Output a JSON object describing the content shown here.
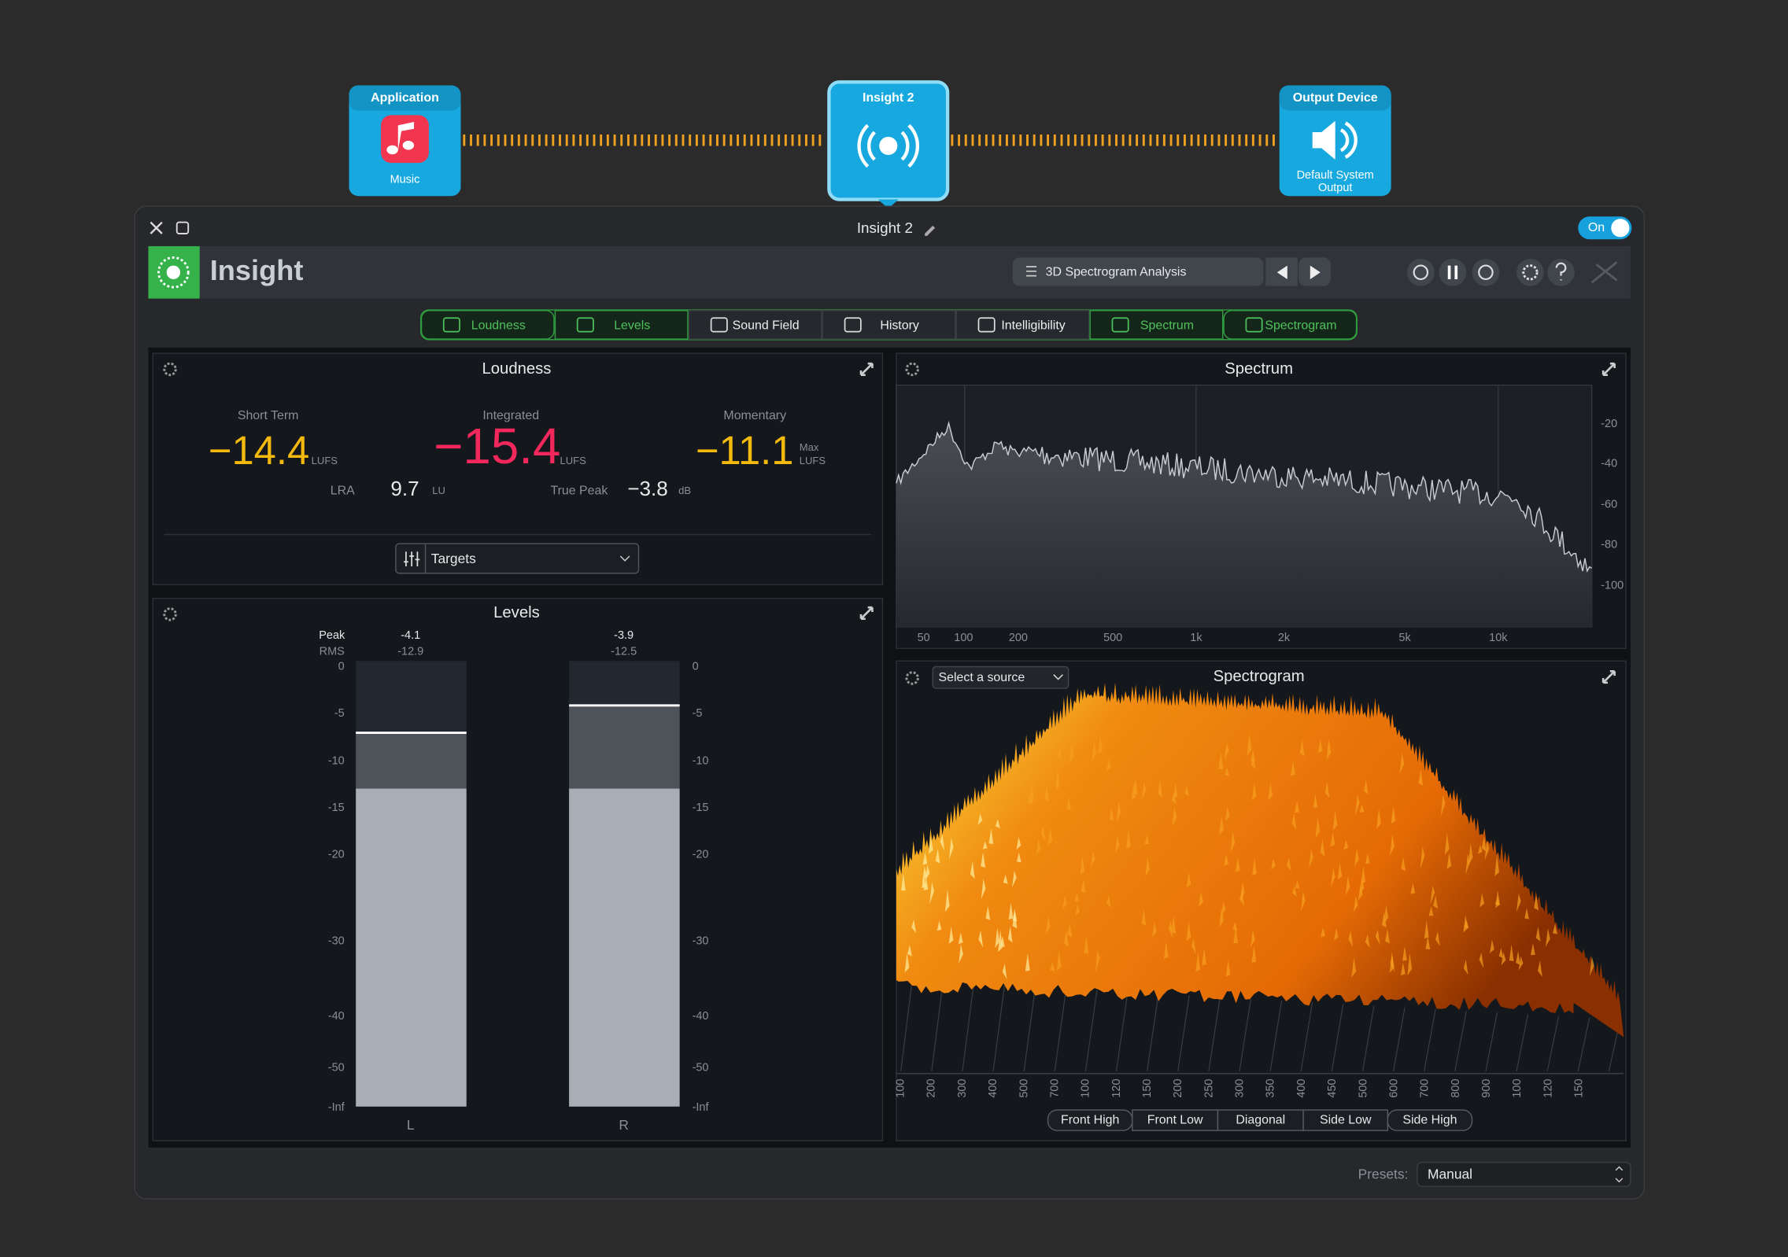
{
  "routing": {
    "nodes": [
      {
        "title": "Application",
        "label": "Music"
      },
      {
        "title": "Insight 2"
      },
      {
        "title": "Output Device",
        "label_line1": "Default System",
        "label_line2": "Output"
      }
    ]
  },
  "window": {
    "title": "Insight 2",
    "toggle": "On",
    "app_name": "Insight",
    "preset_name": "3D Spectrogram Analysis",
    "tabs": [
      "Loudness",
      "Levels",
      "Sound Field",
      "History",
      "Intelligibility",
      "Spectrum",
      "Spectrogram"
    ],
    "presets_label": "Presets:",
    "presets_value": "Manual"
  },
  "loudness": {
    "title": "Loudness",
    "short_term": {
      "label": "Short Term",
      "value": "−14.4",
      "unit": "LUFS"
    },
    "integrated": {
      "label": "Integrated",
      "value": "−15.4",
      "unit": "LUFS"
    },
    "momentary": {
      "label": "Momentary",
      "value": "−11.1",
      "qualifier": "Max",
      "unit": "LUFS"
    },
    "lra": {
      "label": "LRA",
      "value": "9.7",
      "unit": "LU"
    },
    "true_peak": {
      "label": "True Peak",
      "value": "−3.8",
      "unit": "dB"
    },
    "targets": "Targets"
  },
  "levels": {
    "title": "Levels",
    "peak_label": "Peak",
    "rms_label": "RMS",
    "channels": [
      {
        "name": "L",
        "peak": "-4.1",
        "rms": "-12.9"
      },
      {
        "name": "R",
        "peak": "-3.9",
        "rms": "-12.5"
      }
    ],
    "scale": [
      "0",
      "-5",
      "-10",
      "-15",
      "-20",
      "-30",
      "-40",
      "-50",
      "-Inf"
    ]
  },
  "spectrum": {
    "title": "Spectrum",
    "y_labels": [
      "-20",
      "-40",
      "-60",
      "-80",
      "-100"
    ],
    "x_labels": [
      "50",
      "100",
      "200",
      "500",
      "1k",
      "2k",
      "5k",
      "10k"
    ]
  },
  "spectrogram": {
    "title": "Spectrogram",
    "source": "Select a source",
    "axis_labels": [
      "100",
      "200",
      "300",
      "400",
      "500",
      "700",
      "100",
      "120",
      "150",
      "200",
      "250",
      "300",
      "350",
      "400",
      "450",
      "500",
      "600",
      "700",
      "800",
      "900",
      "100",
      "120",
      "150"
    ],
    "views": [
      "Front High",
      "Front Low",
      "Diagonal",
      "Side Low",
      "Side High"
    ]
  }
}
